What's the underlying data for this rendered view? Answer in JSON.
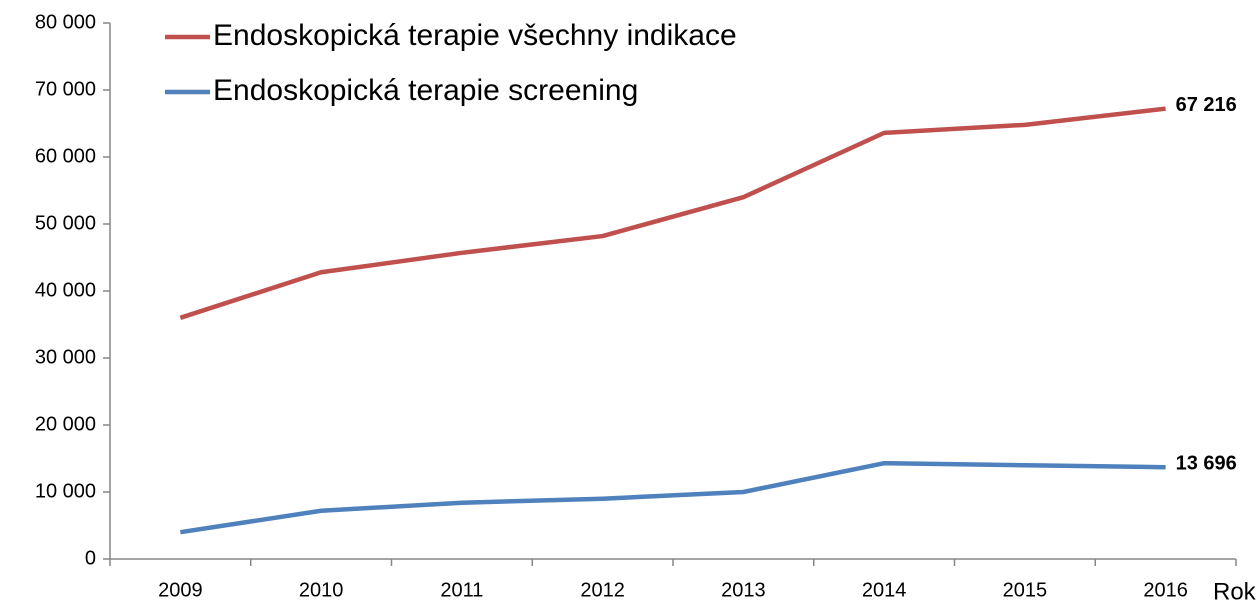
{
  "chart_data": {
    "type": "line",
    "x_label": "Rok",
    "categories": [
      "2009",
      "2010",
      "2011",
      "2012",
      "2013",
      "2014",
      "2015",
      "2016"
    ],
    "series": [
      {
        "name": "Endoskopická terapie všechny indikace",
        "color": "#c0504d",
        "values": [
          36000,
          42800,
          45700,
          48200,
          54000,
          63600,
          64800,
          67216
        ],
        "value_labels": [
          null,
          null,
          null,
          null,
          null,
          null,
          null,
          "67 216"
        ]
      },
      {
        "name": "Endoskopická terapie screening",
        "color": "#4f81bd",
        "values": [
          4000,
          7200,
          8400,
          9000,
          10000,
          14300,
          14000,
          13696
        ],
        "value_labels": [
          null,
          null,
          null,
          null,
          null,
          null,
          null,
          "13 696"
        ]
      }
    ],
    "ylim": [
      0,
      80000
    ],
    "yticks": [
      0,
      {
        "value": 10000,
        "label": "10 000"
      },
      {
        "value": 20000,
        "label": "20 000"
      },
      {
        "value": 30000,
        "label": "30 000"
      },
      {
        "value": 40000,
        "label": "40 000"
      },
      {
        "value": 50000,
        "label": "50 000"
      },
      {
        "value": 60000,
        "label": "60 000"
      },
      {
        "value": 70000,
        "label": "70 000"
      },
      {
        "value": 80000,
        "label": "80 000"
      }
    ],
    "legend": "top-left",
    "grid": false
  }
}
